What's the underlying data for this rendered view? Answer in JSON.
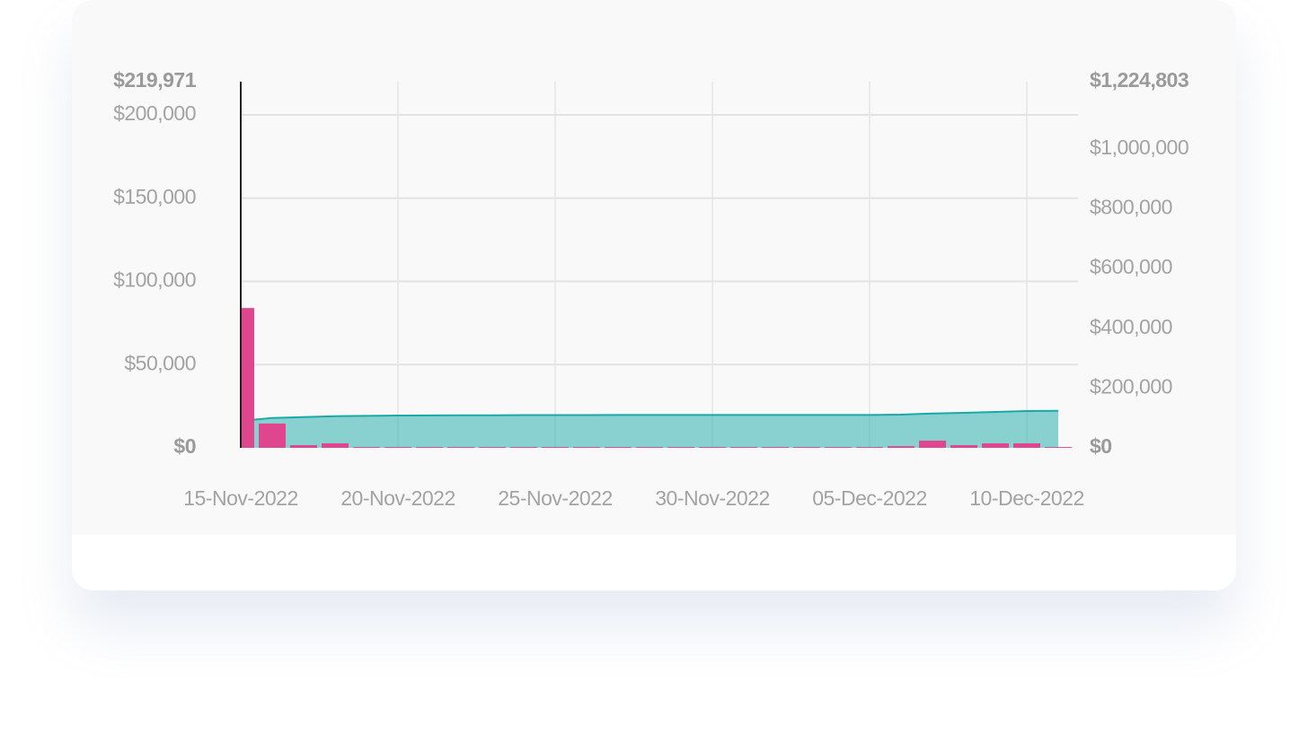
{
  "chart_data": {
    "type": "bar+area",
    "x": [
      "15-Nov-2022",
      "16-Nov-2022",
      "17-Nov-2022",
      "18-Nov-2022",
      "19-Nov-2022",
      "20-Nov-2022",
      "21-Nov-2022",
      "22-Nov-2022",
      "23-Nov-2022",
      "24-Nov-2022",
      "25-Nov-2022",
      "26-Nov-2022",
      "27-Nov-2022",
      "28-Nov-2022",
      "29-Nov-2022",
      "30-Nov-2022",
      "01-Dec-2022",
      "02-Dec-2022",
      "03-Dec-2022",
      "04-Dec-2022",
      "05-Dec-2022",
      "06-Dec-2022",
      "07-Dec-2022",
      "08-Dec-2022",
      "09-Dec-2022",
      "10-Dec-2022",
      "11-Dec-2022"
    ],
    "xticks": [
      "15-Nov-2022",
      "20-Nov-2022",
      "25-Nov-2022",
      "30-Nov-2022",
      "05-Dec-2022",
      "10-Dec-2022"
    ],
    "series": [
      {
        "type": "bar",
        "color": "#e0468e",
        "values": [
          84000,
          14600,
          1600,
          2700,
          500,
          500,
          500,
          500,
          500,
          500,
          500,
          500,
          500,
          500,
          500,
          500,
          500,
          500,
          500,
          500,
          500,
          1000,
          4300,
          1600,
          2700,
          2700,
          500
        ]
      },
      {
        "type": "area",
        "axis": "y2",
        "color": "#1aa8a8",
        "values": [
          90000,
          100000,
          103000,
          106000,
          107000,
          108000,
          108500,
          109000,
          109000,
          109500,
          109500,
          109500,
          110000,
          110000,
          110000,
          110000,
          110000,
          110000,
          110000,
          110000,
          110000,
          111000,
          115000,
          117000,
          120000,
          123000,
          124000
        ]
      }
    ],
    "ylim": [
      0,
      219971
    ],
    "yticks": [
      {
        "value": 0,
        "label": "$0"
      },
      {
        "value": 50000,
        "label": "$50,000"
      },
      {
        "value": 100000,
        "label": "$100,000"
      },
      {
        "value": 150000,
        "label": "$150,000"
      },
      {
        "value": 200000,
        "label": "$200,000"
      },
      {
        "value": 219971,
        "label": "$219,971"
      }
    ],
    "y2lim": [
      0,
      1224803
    ],
    "y2ticks": [
      {
        "value": 0,
        "label": "$0"
      },
      {
        "value": 200000,
        "label": "$200,000"
      },
      {
        "value": 400000,
        "label": "$400,000"
      },
      {
        "value": 600000,
        "label": "$600,000"
      },
      {
        "value": 800000,
        "label": "$800,000"
      },
      {
        "value": 1000000,
        "label": "$1,000,000"
      },
      {
        "value": 1224803,
        "label": "$1,224,803"
      }
    ],
    "grid": true
  }
}
